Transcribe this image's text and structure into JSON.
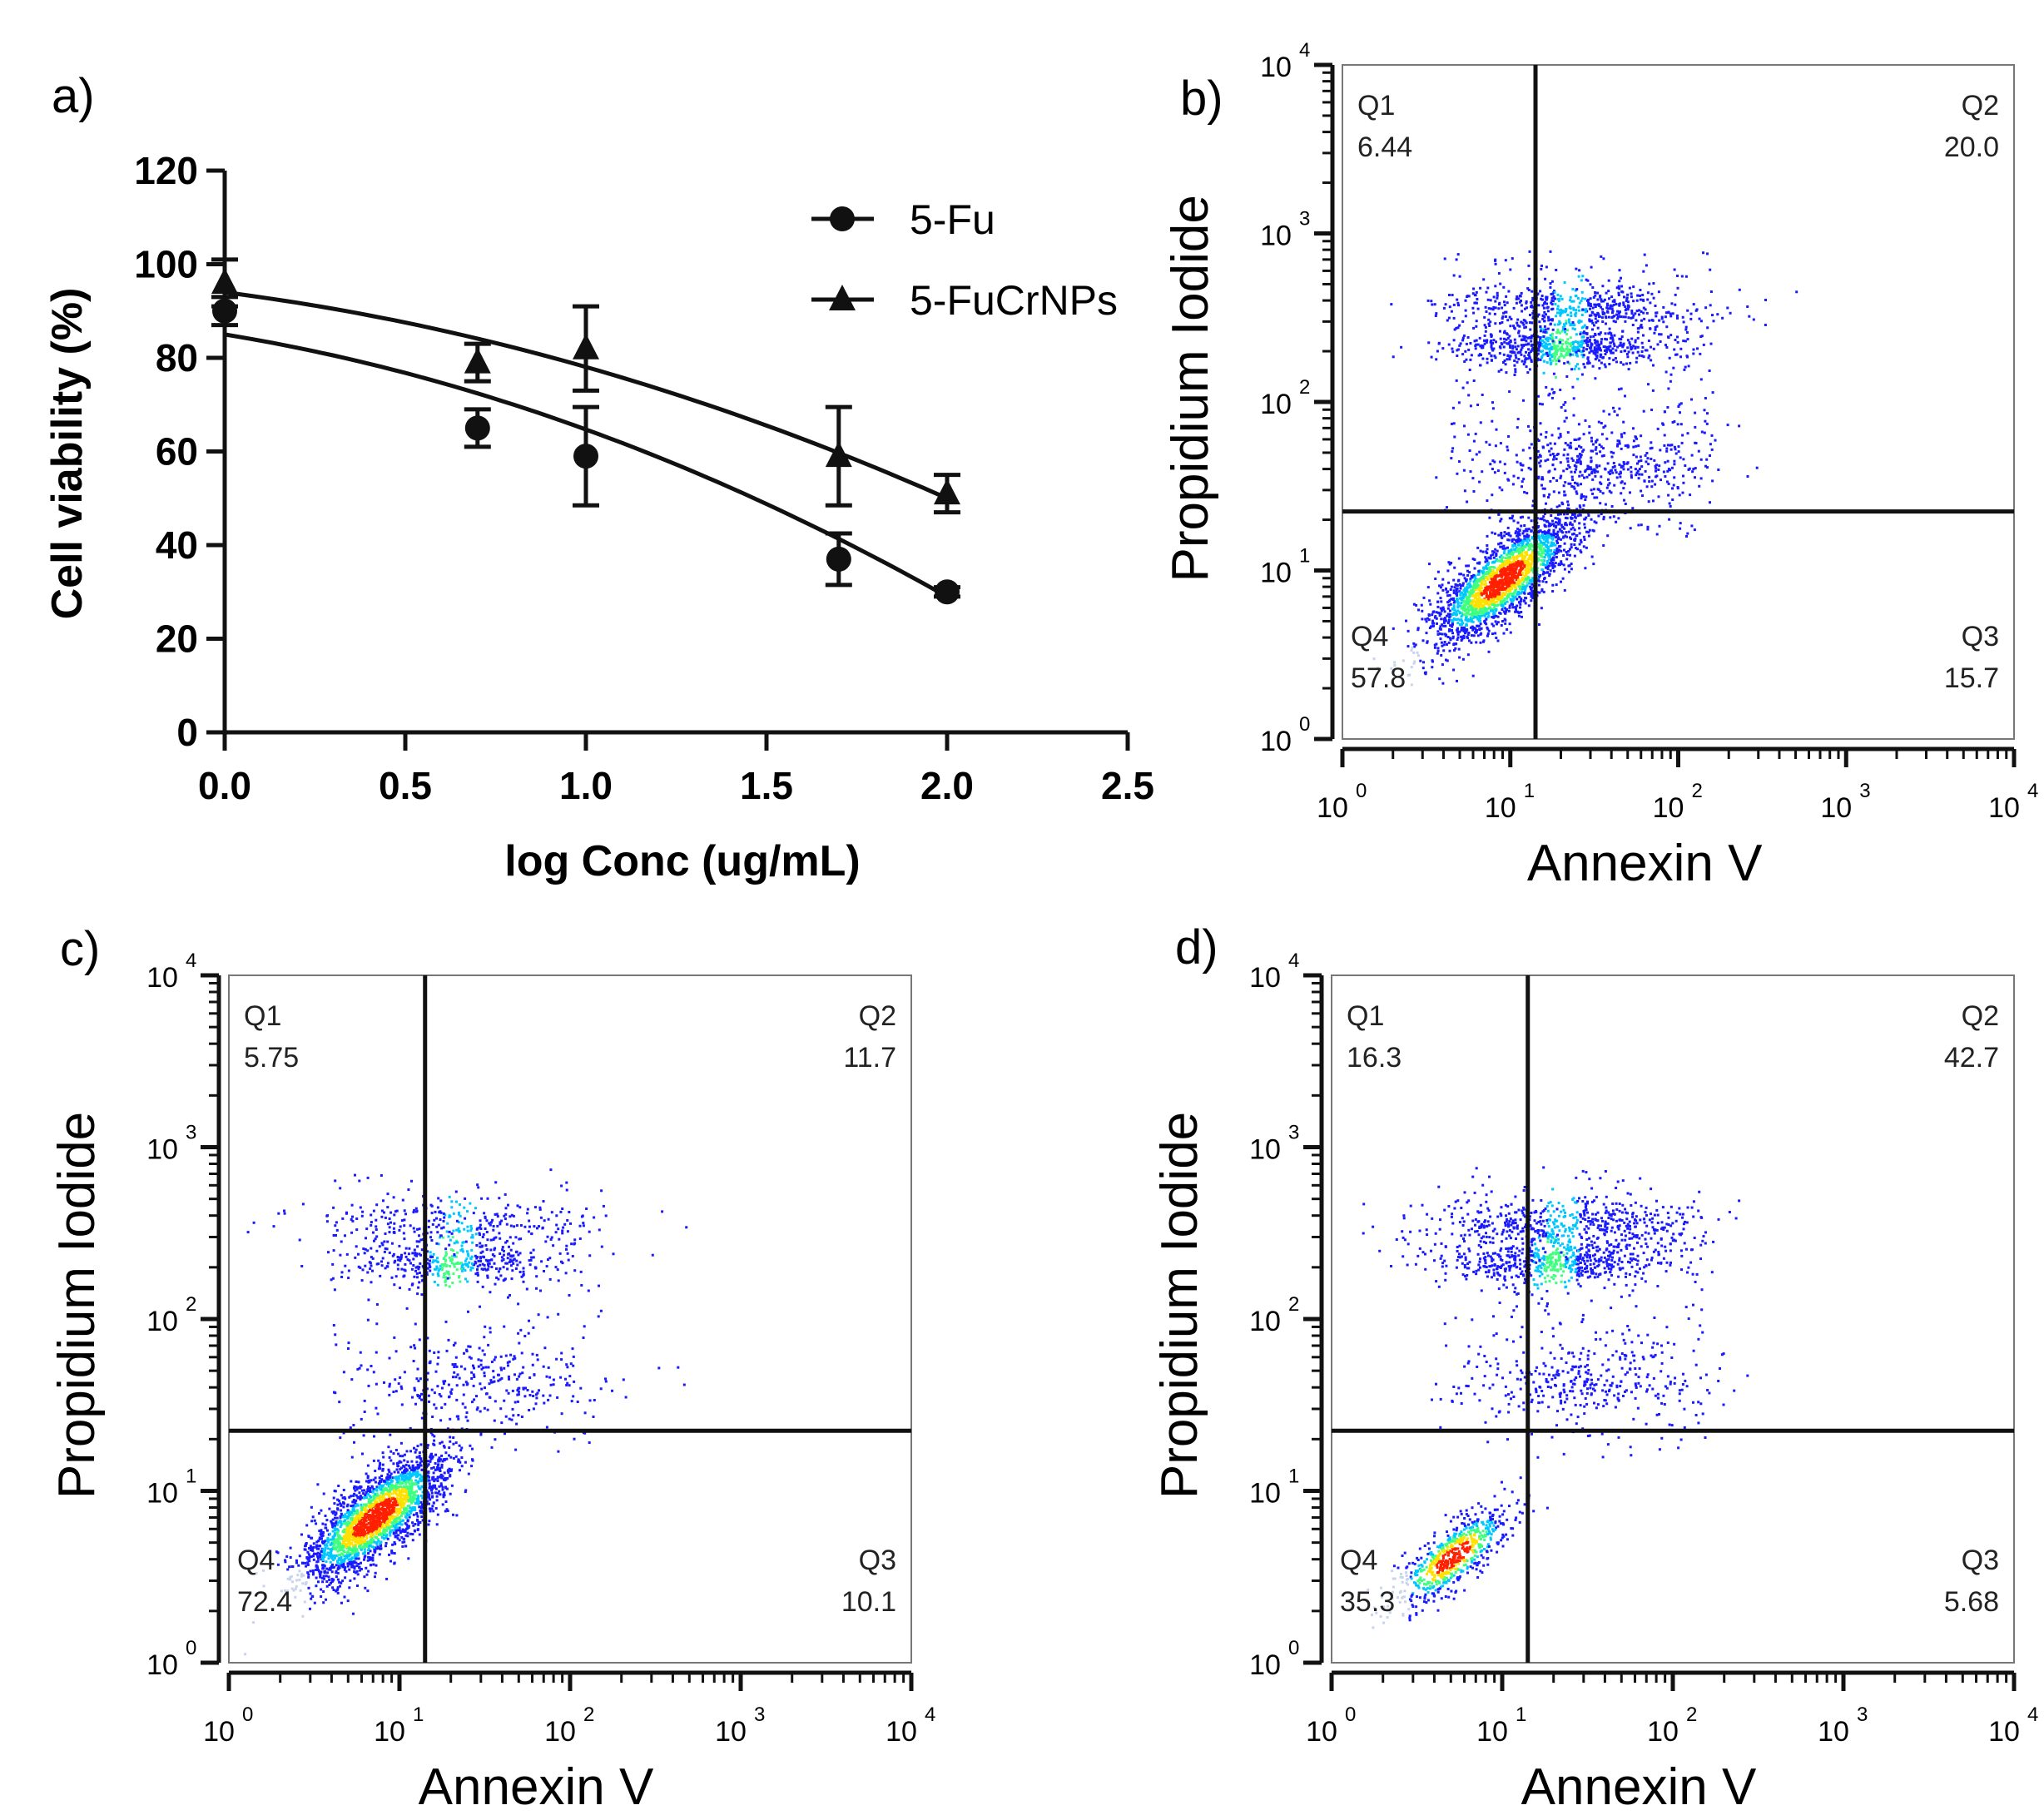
{
  "chart_data": [
    {
      "panel": "a)",
      "type": "scatter",
      "xlabel": "log Conc (ug/mL)",
      "ylabel": "Cell viability (%)",
      "xlim": [
        0,
        2.5
      ],
      "ylim": [
        0,
        120
      ],
      "xticks": [
        "0.0",
        "0.5",
        "1.0",
        "1.5",
        "2.0",
        "2.5"
      ],
      "yticks": [
        "0",
        "20",
        "40",
        "60",
        "80",
        "100",
        "120"
      ],
      "legend_position": "top-right",
      "series": [
        {
          "name": "5-Fu",
          "marker": "circle",
          "x": [
            0,
            0.7,
            1.0,
            1.7,
            2.0
          ],
          "y": [
            90,
            65,
            59,
            37,
            30
          ],
          "err": [
            3,
            4,
            10.5,
            5.5,
            1
          ],
          "fit_start": 85,
          "fit_end": 29
        },
        {
          "name": "5-FuCrNPs",
          "marker": "triangle",
          "x": [
            0,
            0.7,
            1.0,
            1.7,
            2.0
          ],
          "y": [
            96,
            79,
            82,
            59,
            51
          ],
          "err": [
            5,
            4,
            9,
            10.5,
            4
          ],
          "fit_start": 94,
          "fit_end": 50
        }
      ]
    },
    {
      "panel": "b)",
      "type": "scatter",
      "xlabel": "Annexin V",
      "ylabel": "Propidium  Iodide",
      "scale": "log",
      "decades": [
        "10",
        "10",
        "10",
        "10",
        "10"
      ],
      "exponents": [
        "0",
        "1",
        "2",
        "3",
        "4"
      ],
      "gate_log": [
        1.15,
        1.35
      ],
      "quadrants": [
        {
          "label": "Q1",
          "value": "6.44"
        },
        {
          "label": "Q2",
          "value": "20.0"
        },
        {
          "label": "Q3",
          "value": "15.7"
        },
        {
          "label": "Q4",
          "value": "57.8"
        }
      ]
    },
    {
      "panel": "c)",
      "type": "scatter",
      "xlabel": "Annexin V",
      "ylabel": "Propidium  Iodide",
      "scale": "log",
      "decades": [
        "10",
        "10",
        "10",
        "10",
        "10"
      ],
      "exponents": [
        "0",
        "1",
        "2",
        "3",
        "4"
      ],
      "gate_log": [
        1.15,
        1.35
      ],
      "quadrants": [
        {
          "label": "Q1",
          "value": "5.75"
        },
        {
          "label": "Q2",
          "value": "11.7"
        },
        {
          "label": "Q3",
          "value": "10.1"
        },
        {
          "label": "Q4",
          "value": "72.4"
        }
      ]
    },
    {
      "panel": "d)",
      "type": "scatter",
      "xlabel": "Annexin V",
      "ylabel": "Propidium  Iodide",
      "scale": "log",
      "decades": [
        "10",
        "10",
        "10",
        "10",
        "10"
      ],
      "exponents": [
        "0",
        "1",
        "2",
        "3",
        "4"
      ],
      "gate_log": [
        1.15,
        1.35
      ],
      "quadrants": [
        {
          "label": "Q1",
          "value": "16.3"
        },
        {
          "label": "Q2",
          "value": "42.7"
        },
        {
          "label": "Q3",
          "value": "5.68"
        },
        {
          "label": "Q4",
          "value": "35.3"
        }
      ]
    }
  ],
  "colors": {
    "axis": "#111111",
    "density": [
      "#1a1aff",
      "#00c8ff",
      "#40ff80",
      "#ffe000",
      "#ff2000"
    ]
  }
}
